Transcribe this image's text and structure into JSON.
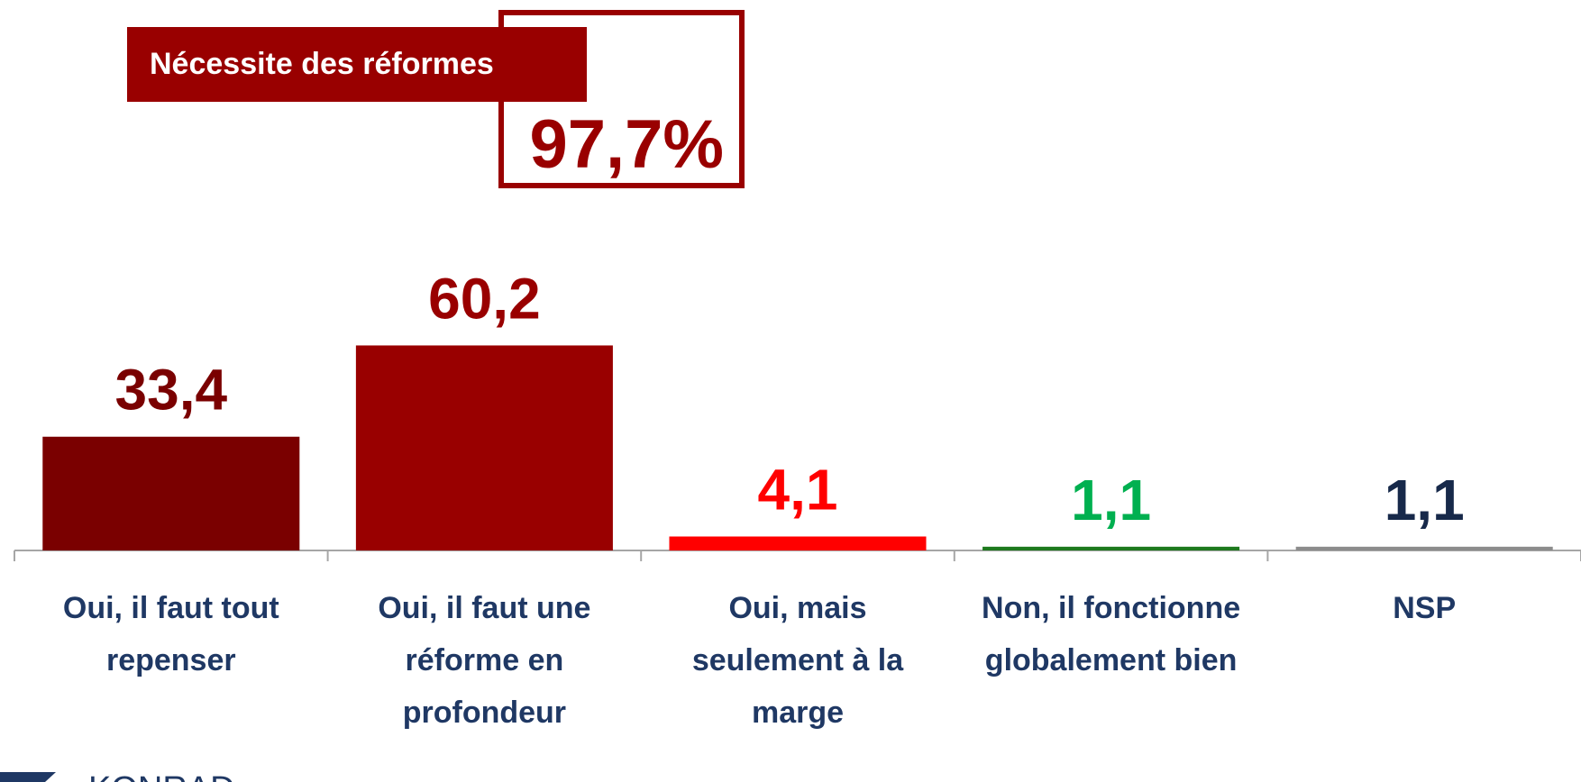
{
  "chart_data": {
    "type": "bar",
    "annotation": {
      "title": "Nécessite des réformes",
      "value": 97.7,
      "value_label": "97,7%"
    },
    "categories": [
      "Oui, il faut tout repenser",
      "Oui, il faut une réforme en profondeur",
      "Oui, mais seulement à la marge",
      "Non, il fonctionne globalement bien",
      "NSP"
    ],
    "values": [
      33.4,
      60.2,
      4.1,
      1.1,
      1.1
    ],
    "value_labels": [
      "33,4",
      "60,2",
      "4,1",
      "1,1",
      "1,1"
    ],
    "colors": [
      "#7a0000",
      "#990000",
      "#ff0000",
      "#1e7a1e",
      "#8c8c8c"
    ],
    "label_colors": [
      "#7a0000",
      "#990000",
      "#ff0000",
      "#00b050",
      "#17294a"
    ],
    "ylim": [
      0,
      100
    ],
    "logo": "KONRAD"
  }
}
